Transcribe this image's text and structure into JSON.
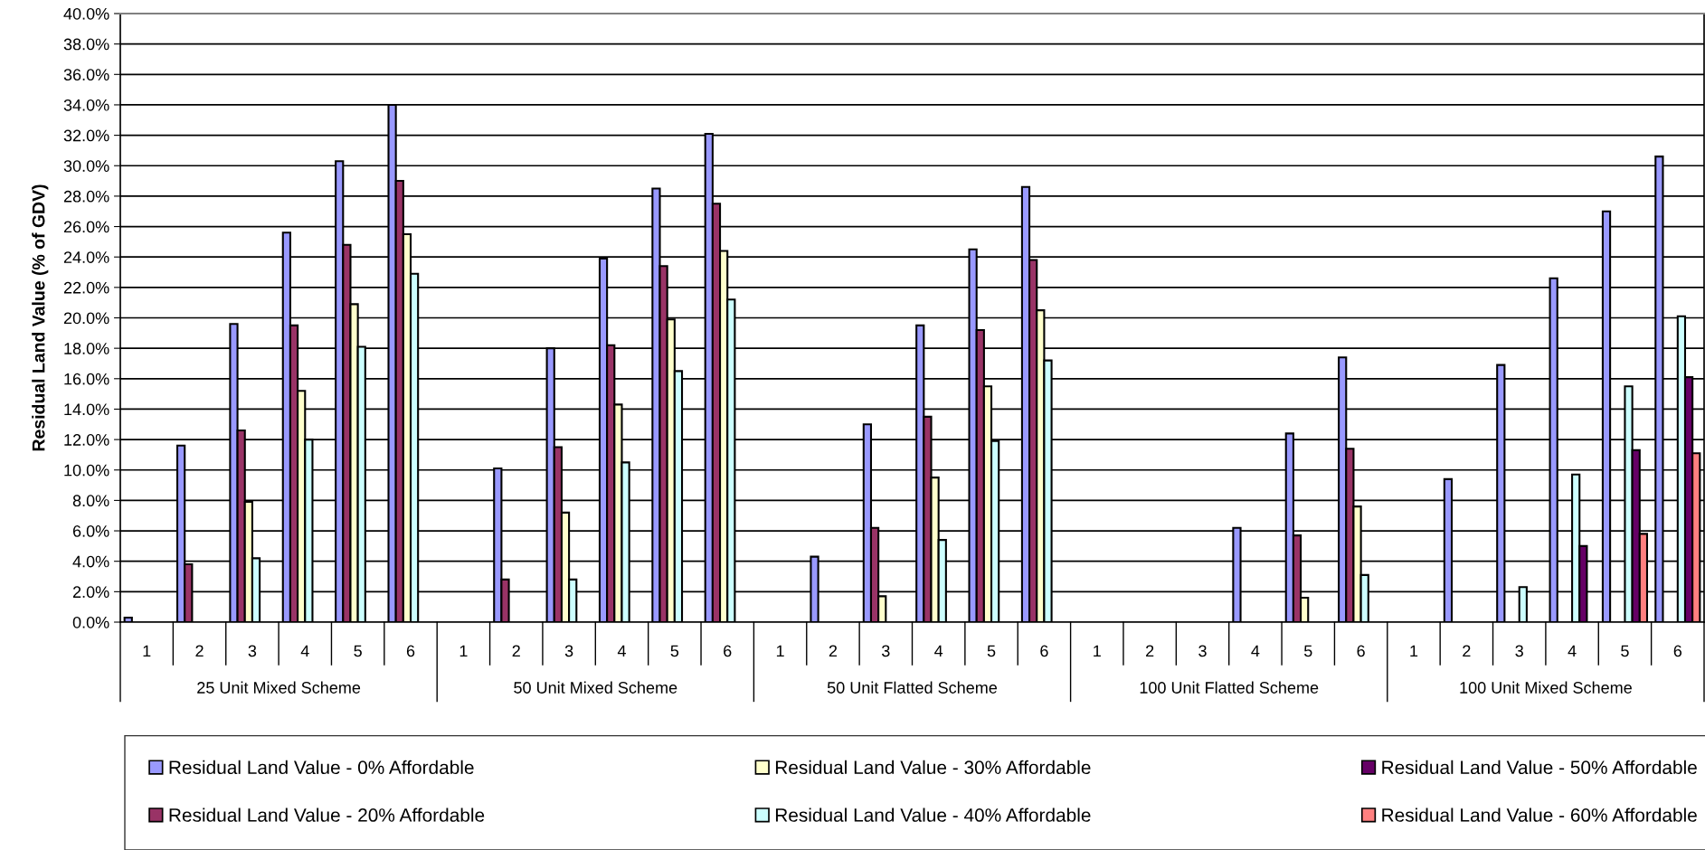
{
  "chart_data": {
    "type": "bar",
    "ylabel": "Residual Land Value (% of GDV)",
    "categories": [
      "1",
      "2",
      "3",
      "4",
      "5",
      "6",
      "1",
      "2",
      "3",
      "4",
      "5",
      "6",
      "1",
      "2",
      "3",
      "4",
      "5",
      "6",
      "1",
      "2",
      "3",
      "4",
      "5",
      "6",
      "1",
      "2",
      "3",
      "4",
      "5",
      "6"
    ],
    "annotations": [
      "25 Unit Mixed Scheme",
      "50 Unit Mixed Scheme",
      "50 Unit Flatted Scheme",
      "100 Unit Flatted Scheme",
      "100 Unit Mixed Scheme"
    ],
    "series": [
      {
        "name": "Residual Land Value - 0% Affordable",
        "color": "#9999ff",
        "values": [
          0.3,
          11.6,
          19.6,
          25.6,
          30.3,
          34.0,
          null,
          10.1,
          18.0,
          23.9,
          28.5,
          32.1,
          null,
          4.3,
          13.0,
          19.5,
          24.5,
          28.6,
          null,
          null,
          null,
          6.2,
          12.4,
          17.4,
          null,
          9.4,
          16.9,
          22.6,
          27.0,
          30.6
        ]
      },
      {
        "name": "Residual Land Value - 20% Affordable",
        "color": "#993366",
        "values": [
          null,
          3.8,
          12.6,
          19.5,
          24.8,
          29.0,
          null,
          2.8,
          11.5,
          18.2,
          23.4,
          27.5,
          null,
          null,
          6.2,
          13.5,
          19.2,
          23.8,
          null,
          null,
          null,
          null,
          5.7,
          11.4,
          null,
          null,
          null,
          null,
          null,
          null
        ]
      },
      {
        "name": "Residual Land Value - 30% Affordable",
        "color": "#ffffcc",
        "values": [
          null,
          null,
          7.9,
          15.2,
          20.9,
          25.5,
          null,
          null,
          7.2,
          14.3,
          19.9,
          24.4,
          null,
          null,
          1.7,
          9.5,
          15.5,
          20.5,
          null,
          null,
          null,
          null,
          1.6,
          7.6,
          null,
          null,
          null,
          null,
          null,
          null
        ]
      },
      {
        "name": "Residual Land Value - 40% Affordable",
        "color": "#ccffff",
        "values": [
          null,
          null,
          4.2,
          12.0,
          18.1,
          22.9,
          null,
          null,
          2.8,
          10.5,
          16.5,
          21.2,
          null,
          null,
          null,
          5.4,
          11.9,
          17.2,
          null,
          null,
          null,
          null,
          null,
          3.1,
          null,
          null,
          2.3,
          9.7,
          15.5,
          20.1
        ]
      },
      {
        "name": "Residual Land Value - 50% Affordable",
        "color": "#660066",
        "values": [
          null,
          null,
          null,
          null,
          null,
          null,
          null,
          null,
          null,
          null,
          null,
          null,
          null,
          null,
          null,
          null,
          null,
          null,
          null,
          null,
          null,
          null,
          null,
          null,
          null,
          null,
          null,
          5.0,
          11.3,
          16.1
        ]
      },
      {
        "name": "Residual Land Value - 60% Affordable",
        "color": "#ff8080",
        "values": [
          null,
          null,
          null,
          null,
          null,
          null,
          null,
          null,
          null,
          null,
          null,
          null,
          null,
          null,
          null,
          null,
          null,
          null,
          null,
          null,
          null,
          null,
          null,
          null,
          null,
          null,
          null,
          null,
          5.8,
          11.1
        ]
      }
    ],
    "ylim": [
      0,
      40
    ],
    "yticks": [
      {
        "value": 0,
        "label": "0.0%"
      },
      {
        "value": 2,
        "label": "2.0%"
      },
      {
        "value": 4,
        "label": "4.0%"
      },
      {
        "value": 6,
        "label": "6.0%"
      },
      {
        "value": 8,
        "label": "8.0%"
      },
      {
        "value": 10,
        "label": "10.0%"
      },
      {
        "value": 12,
        "label": "12.0%"
      },
      {
        "value": 14,
        "label": "14.0%"
      },
      {
        "value": 16,
        "label": "16.0%"
      },
      {
        "value": 18,
        "label": "18.0%"
      },
      {
        "value": 20,
        "label": "20.0%"
      },
      {
        "value": 22,
        "label": "22.0%"
      },
      {
        "value": 24,
        "label": "24.0%"
      },
      {
        "value": 26,
        "label": "26.0%"
      },
      {
        "value": 28,
        "label": "28.0%"
      },
      {
        "value": 30,
        "label": "30.0%"
      },
      {
        "value": 32,
        "label": "32.0%"
      },
      {
        "value": 34,
        "label": "34.0%"
      },
      {
        "value": 36,
        "label": "36.0%"
      },
      {
        "value": 38,
        "label": "38.0%"
      },
      {
        "value": 40,
        "label": "40.0%"
      }
    ],
    "grid": "y",
    "legend": "bottom"
  }
}
